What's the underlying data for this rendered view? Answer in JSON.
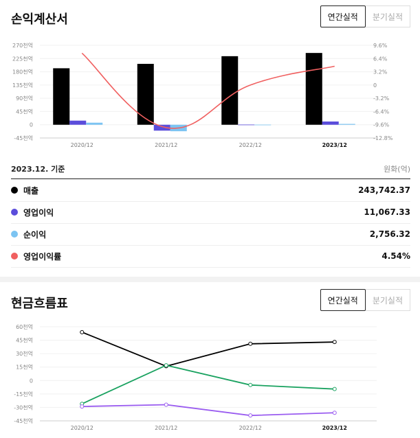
{
  "income": {
    "title": "손익계산서",
    "tabs": {
      "annual": "연간실적",
      "quarterly": "분기실적"
    },
    "basis": "2023.12. 기준",
    "unit": "원화(억)",
    "metrics": [
      {
        "name": "매출",
        "value": "243,742.37",
        "color": "#000000"
      },
      {
        "name": "영업이익",
        "value": "11,067.33",
        "color": "#5b4ddb"
      },
      {
        "name": "순이익",
        "value": "2,756.32",
        "color": "#7cc4f2"
      },
      {
        "name": "영업이익률",
        "value": "4.54%",
        "color": "#f06060"
      }
    ]
  },
  "cashflow": {
    "title": "현금흐름표",
    "tabs": {
      "annual": "연간실적",
      "quarterly": "분기실적"
    }
  },
  "chart_data": [
    {
      "type": "bar",
      "categories": [
        "2020/12",
        "2021/12",
        "2022/12",
        "2023/12"
      ],
      "ylim": [
        -45,
        270
      ],
      "y_ticks": [
        "270천억",
        "225천억",
        "180천억",
        "135천억",
        "90천억",
        "45천억",
        "0",
        "-45천억"
      ],
      "y2lim": [
        -12.8,
        9.6
      ],
      "y2_ticks": [
        "9.6%",
        "6.4%",
        "3.2%",
        "0",
        "-3.2%",
        "-6.4%",
        "-9.6%",
        "-12.8%"
      ],
      "series": [
        {
          "name": "매출",
          "values": [
            192,
            207,
            233,
            244
          ],
          "color": "#000000"
        },
        {
          "name": "영업이익",
          "values": [
            14,
            -20,
            0.5,
            11
          ],
          "color": "#5b4ddb"
        },
        {
          "name": "순이익",
          "values": [
            7,
            -22,
            0.3,
            2.8
          ],
          "color": "#7cc4f2"
        },
        {
          "name": "영업이익률",
          "type": "line",
          "axis": "right",
          "values": [
            7.7,
            -10.3,
            0.0,
            4.54
          ],
          "color": "#f06060"
        }
      ]
    },
    {
      "type": "line",
      "categories": [
        "2020/12",
        "2021/12",
        "2022/12",
        "2023/12"
      ],
      "ylim": [
        -45,
        60
      ],
      "y_ticks": [
        "60천억",
        "45천억",
        "30천억",
        "15천억",
        "0",
        "-15천억",
        "-30천억",
        "-45천억"
      ],
      "series": [
        {
          "values": [
            54,
            16,
            41,
            43
          ],
          "color": "#000000"
        },
        {
          "values": [
            -26,
            17,
            -5,
            -9.5
          ],
          "color": "#1aa260"
        },
        {
          "values": [
            -29,
            -27,
            -39,
            -36
          ],
          "color": "#9a5cf0"
        }
      ]
    }
  ]
}
